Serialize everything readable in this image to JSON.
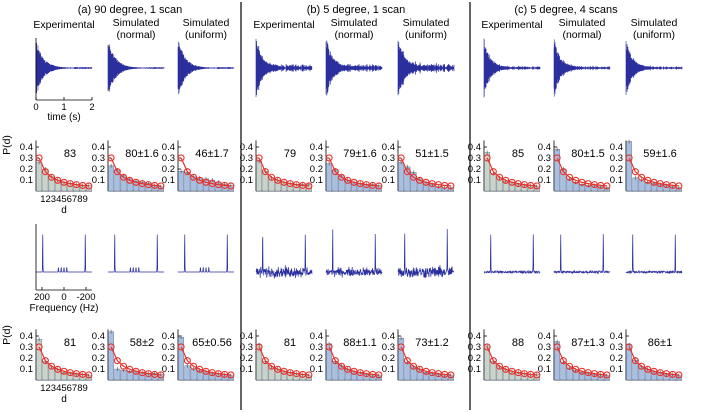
{
  "figure": {
    "colors": {
      "signal": "#2b2f9e",
      "bar_grey": "#c9d3c8",
      "bar_blue": "#a9bfe0",
      "bar_edge": "#5a6a8a",
      "curve": "#e8302a",
      "divider": "#000000"
    },
    "sections": [
      {
        "title": "(a) 90 degree, 1 scan",
        "columns": [
          {
            "label": [
              "Experimental"
            ],
            "fid_decay": 0.13,
            "fid_noise": 0.01,
            "spec_noise": 0.0,
            "spec_type": "multiplet",
            "bar_style": "grey",
            "hist1_label": "83",
            "hist2_label": "81"
          },
          {
            "label": [
              "Simulated",
              "(normal)"
            ],
            "fid_decay": 0.13,
            "fid_noise": 0.01,
            "spec_noise": 0.0,
            "spec_type": "multiplet",
            "bar_style": "blue",
            "hist1_label": "80±1.6",
            "hist2_label": "58±2"
          },
          {
            "label": [
              "Simulated",
              "(uniform)"
            ],
            "fid_decay": 0.13,
            "fid_noise": 0.01,
            "spec_noise": 0.0,
            "spec_type": "multiplet",
            "bar_style": "blue",
            "hist1_label": "46±1.7",
            "hist2_label": "65±0.56"
          }
        ]
      },
      {
        "title": "(b) 5 degree, 1 scan",
        "columns": [
          {
            "label": [
              "Experimental"
            ],
            "fid_decay": 0.11,
            "fid_noise": 0.12,
            "spec_noise": 0.55,
            "spec_type": "noisy",
            "bar_style": "grey",
            "hist1_label": "79",
            "hist2_label": "81"
          },
          {
            "label": [
              "Simulated",
              "(normal)"
            ],
            "fid_decay": 0.11,
            "fid_noise": 0.12,
            "spec_noise": 0.45,
            "spec_type": "noisy",
            "bar_style": "blue",
            "hist1_label": "79±1.6",
            "hist2_label": "88±1.1"
          },
          {
            "label": [
              "Simulated",
              "(uniform)"
            ],
            "fid_decay": 0.11,
            "fid_noise": 0.16,
            "spec_noise": 0.6,
            "spec_type": "noisy",
            "bar_style": "blue",
            "hist1_label": "51±1.5",
            "hist2_label": "73±1.2"
          }
        ]
      },
      {
        "title": "(c) 5 degree, 4 scans",
        "columns": [
          {
            "label": [
              "Experimental"
            ],
            "fid_decay": 0.11,
            "fid_noise": 0.06,
            "spec_noise": 0.12,
            "spec_type": "noisy",
            "bar_style": "grey",
            "hist1_label": "85",
            "hist2_label": "88"
          },
          {
            "label": [
              "Simulated",
              "(normal)"
            ],
            "fid_decay": 0.11,
            "fid_noise": 0.06,
            "spec_noise": 0.12,
            "spec_type": "noisy",
            "bar_style": "blue",
            "hist1_label": "80±1.5",
            "hist2_label": "87±1.3"
          },
          {
            "label": [
              "Simulated",
              "(uniform)"
            ],
            "fid_decay": 0.11,
            "fid_noise": 0.06,
            "spec_noise": 0.12,
            "spec_type": "noisy",
            "bar_style": "blue",
            "hist1_label": "59±1.6",
            "hist2_label": "86±1"
          }
        ]
      }
    ],
    "time_axis": {
      "ticks": [
        "0",
        "1",
        "2"
      ],
      "label": "time (s)"
    },
    "freq_axis": {
      "ticks": [
        "200",
        "0",
        "-200"
      ],
      "label": "Frequency (Hz)"
    },
    "hist_axis": {
      "ylabel": "P(d)",
      "xlabel": "d",
      "x_ticks_text": "123456789"
    }
  },
  "chart_data": [
    {
      "type": "bar",
      "title": "",
      "xlabel": "d",
      "ylabel": "P(d)",
      "categories": [
        1,
        2,
        3,
        4,
        5,
        6,
        7,
        8,
        9
      ],
      "ylim": [
        0,
        0.45
      ],
      "y_ticks": [
        0,
        0.1,
        0.2,
        0.3,
        0.4
      ],
      "benford_curve": [
        0.301,
        0.176,
        0.125,
        0.097,
        0.079,
        0.067,
        0.058,
        0.051,
        0.046
      ],
      "row1_values": [
        [
          0.26,
          0.2,
          0.13,
          0.1,
          0.08,
          0.07,
          0.06,
          0.05,
          0.05
        ],
        [
          0.23,
          0.19,
          0.14,
          0.11,
          0.09,
          0.08,
          0.07,
          0.05,
          0.04
        ],
        [
          0.18,
          0.17,
          0.13,
          0.12,
          0.11,
          0.1,
          0.08,
          0.06,
          0.05
        ],
        [
          0.27,
          0.18,
          0.12,
          0.1,
          0.08,
          0.07,
          0.06,
          0.06,
          0.06
        ],
        [
          0.25,
          0.19,
          0.14,
          0.1,
          0.08,
          0.07,
          0.06,
          0.06,
          0.05
        ],
        [
          0.26,
          0.22,
          0.17,
          0.11,
          0.08,
          0.06,
          0.04,
          0.03,
          0.03
        ],
        [
          0.35,
          0.16,
          0.12,
          0.09,
          0.08,
          0.06,
          0.05,
          0.05,
          0.04
        ],
        [
          0.38,
          0.2,
          0.11,
          0.08,
          0.06,
          0.05,
          0.05,
          0.04,
          0.03
        ],
        [
          0.45,
          0.12,
          0.1,
          0.08,
          0.07,
          0.06,
          0.05,
          0.04,
          0.03
        ]
      ],
      "row2_values": [
        [
          0.37,
          0.17,
          0.12,
          0.1,
          0.07,
          0.06,
          0.05,
          0.05,
          0.04
        ],
        [
          0.44,
          0.1,
          0.09,
          0.08,
          0.08,
          0.07,
          0.06,
          0.06,
          0.05
        ],
        [
          0.39,
          0.13,
          0.1,
          0.09,
          0.08,
          0.06,
          0.06,
          0.05,
          0.04
        ],
        [
          0.32,
          0.17,
          0.12,
          0.1,
          0.08,
          0.07,
          0.06,
          0.05,
          0.04
        ],
        [
          0.33,
          0.17,
          0.13,
          0.1,
          0.08,
          0.07,
          0.05,
          0.04,
          0.04
        ],
        [
          0.38,
          0.16,
          0.12,
          0.1,
          0.07,
          0.06,
          0.05,
          0.04,
          0.04
        ],
        [
          0.31,
          0.17,
          0.12,
          0.1,
          0.08,
          0.07,
          0.06,
          0.05,
          0.05
        ],
        [
          0.35,
          0.16,
          0.11,
          0.09,
          0.07,
          0.06,
          0.05,
          0.05,
          0.04
        ],
        [
          0.32,
          0.18,
          0.12,
          0.1,
          0.08,
          0.07,
          0.05,
          0.05,
          0.04
        ]
      ]
    }
  ]
}
